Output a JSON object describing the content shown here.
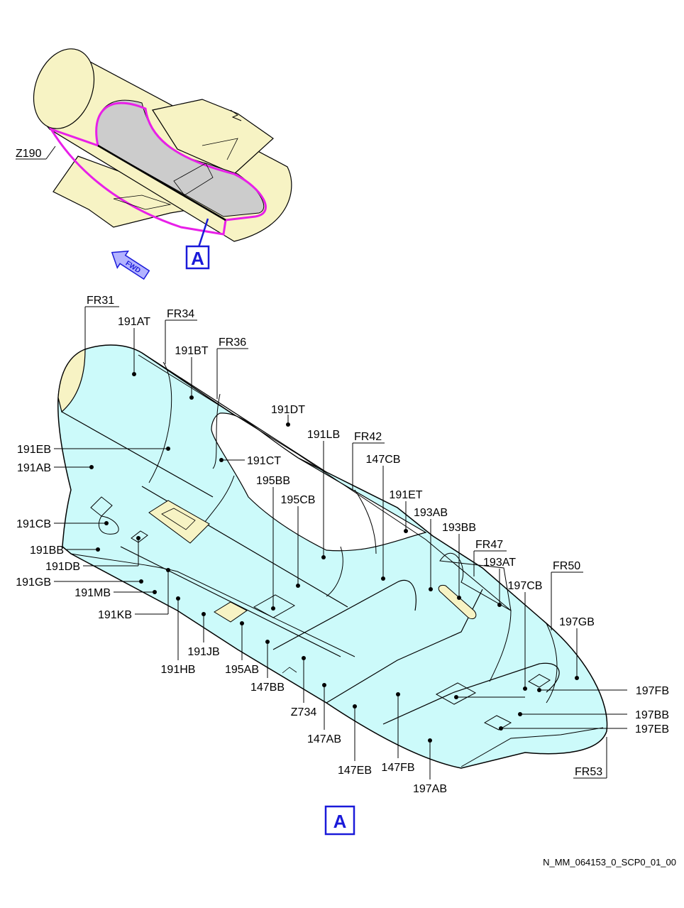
{
  "zone_label": "Z190",
  "view_label": "A",
  "fwd_label": "FWD",
  "document_id": "N_MM_064153_0_SCP0_01_00",
  "frames": [
    {
      "id": "fr31",
      "text": "FR31"
    },
    {
      "id": "fr34",
      "text": "FR34"
    },
    {
      "id": "fr36",
      "text": "FR36"
    },
    {
      "id": "fr42",
      "text": "FR42"
    },
    {
      "id": "fr47",
      "text": "FR47"
    },
    {
      "id": "fr50",
      "text": "FR50"
    },
    {
      "id": "fr53",
      "text": "FR53"
    }
  ],
  "panels": [
    {
      "id": "191at",
      "text": "191AT"
    },
    {
      "id": "191bt",
      "text": "191BT"
    },
    {
      "id": "191dt",
      "text": "191DT"
    },
    {
      "id": "191lb",
      "text": "191LB"
    },
    {
      "id": "147cb",
      "text": "147CB"
    },
    {
      "id": "191eb",
      "text": "191EB"
    },
    {
      "id": "191ct",
      "text": "191CT"
    },
    {
      "id": "191ab",
      "text": "191AB"
    },
    {
      "id": "195bb",
      "text": "195BB"
    },
    {
      "id": "191et",
      "text": "191ET"
    },
    {
      "id": "195cb",
      "text": "195CB"
    },
    {
      "id": "193ab",
      "text": "193AB"
    },
    {
      "id": "191cb",
      "text": "191CB"
    },
    {
      "id": "193bb",
      "text": "193BB"
    },
    {
      "id": "191bb",
      "text": "191BB"
    },
    {
      "id": "193at",
      "text": "193AT"
    },
    {
      "id": "191db",
      "text": "191DB"
    },
    {
      "id": "197cb",
      "text": "197CB"
    },
    {
      "id": "191gb",
      "text": "191GB"
    },
    {
      "id": "191mb",
      "text": "191MB"
    },
    {
      "id": "197gb",
      "text": "197GB"
    },
    {
      "id": "191kb",
      "text": "191KB"
    },
    {
      "id": "191jb",
      "text": "191JB"
    },
    {
      "id": "191hb",
      "text": "191HB"
    },
    {
      "id": "195ab",
      "text": "195AB"
    },
    {
      "id": "147bb",
      "text": "147BB"
    },
    {
      "id": "197fb",
      "text": "197FB"
    },
    {
      "id": "197bb",
      "text": "197BB"
    },
    {
      "id": "197eb",
      "text": "197EB"
    },
    {
      "id": "z734",
      "text": "Z734"
    },
    {
      "id": "147ab",
      "text": "147AB"
    },
    {
      "id": "147eb",
      "text": "147EB"
    },
    {
      "id": "147fb",
      "text": "147FB"
    },
    {
      "id": "197ab",
      "text": "197AB"
    }
  ],
  "colors": {
    "fuselage": "#f7f3c4",
    "skin_panel": "#ccfafa",
    "highlight_outline": "#e81fe8",
    "belly_zone": "#cccccc",
    "view_box": "#1a1ad9",
    "line": "#000000"
  }
}
